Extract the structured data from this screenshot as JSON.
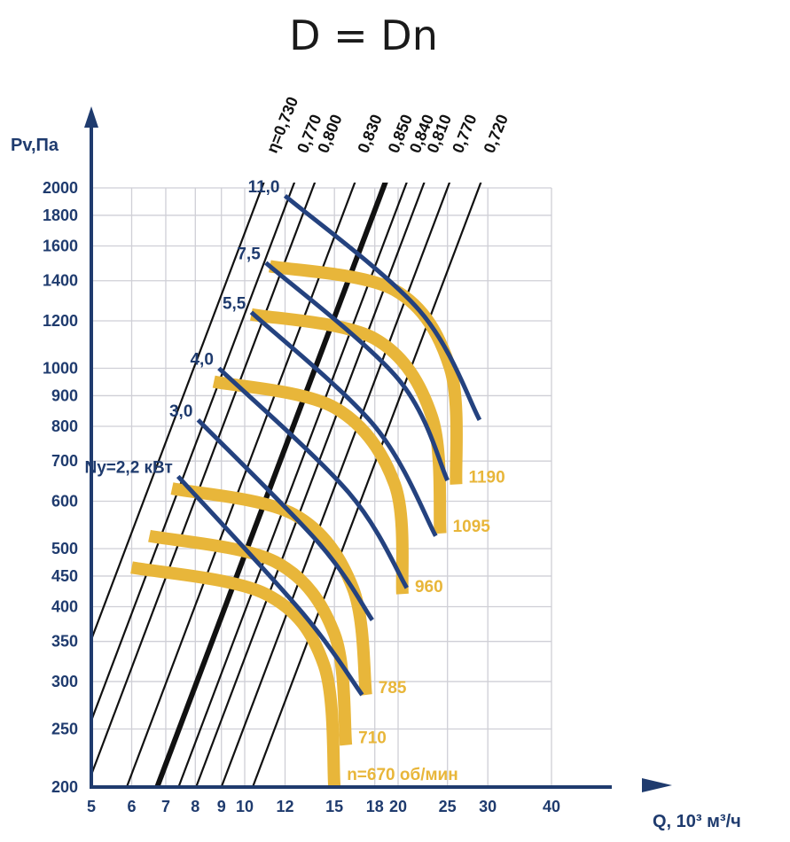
{
  "chart_data": {
    "type": "line",
    "title": "D = Dn",
    "xlabel": "Q, 10³ м³/ч",
    "ylabel": "Pv,Па",
    "x_scale": "log",
    "y_scale": "log",
    "xlim": [
      5,
      40
    ],
    "ylim": [
      200,
      2000
    ],
    "x_ticks": [
      5,
      6,
      7,
      8,
      9,
      10,
      12,
      15,
      18,
      20,
      25,
      30,
      40
    ],
    "y_ticks": [
      200,
      250,
      300,
      350,
      400,
      450,
      500,
      600,
      700,
      800,
      900,
      1000,
      1200,
      1400,
      1600,
      1800,
      2000
    ],
    "grid": true,
    "colors": {
      "axis": "#1f3b6e",
      "power": "#24427f",
      "speed": "#e8b63a",
      "efficiency": "#111111",
      "grid": "#cfcfd6"
    },
    "efficiency_lines": [
      {
        "label": "η=0,730",
        "x_at_ymax": 10.8
      },
      {
        "label": "0,770",
        "x_at_ymax": 12.4
      },
      {
        "label": "0,800",
        "x_at_ymax": 13.6
      },
      {
        "label": "0,830",
        "x_at_ymax": 16.3
      },
      {
        "label": "0,850",
        "x_at_ymax": 18.7,
        "bold": true
      },
      {
        "label": "0,840",
        "x_at_ymax": 20.6
      },
      {
        "label": "0,810",
        "x_at_ymax": 22.3
      },
      {
        "label": "0,770",
        "x_at_ymax": 25.0
      },
      {
        "label": "0,720",
        "x_at_ymax": 28.8
      }
    ],
    "power_curves": [
      {
        "label": "Ny=2,2 кВт",
        "points": [
          [
            7.4,
            660
          ],
          [
            13.0,
            390
          ],
          [
            17.0,
            285
          ]
        ]
      },
      {
        "label": "3,0",
        "points": [
          [
            8.1,
            820
          ],
          [
            14.0,
            510
          ],
          [
            17.8,
            380
          ]
        ]
      },
      {
        "label": "4,0",
        "points": [
          [
            8.9,
            1000
          ],
          [
            16.0,
            620
          ],
          [
            20.8,
            430
          ]
        ]
      },
      {
        "label": "5,5",
        "points": [
          [
            10.3,
            1240
          ],
          [
            18.0,
            800
          ],
          [
            23.7,
            525
          ]
        ]
      },
      {
        "label": "7,5",
        "points": [
          [
            11.0,
            1500
          ],
          [
            20.0,
            960
          ],
          [
            25.0,
            650
          ]
        ]
      },
      {
        "label": "11,0",
        "points": [
          [
            12.0,
            1940
          ],
          [
            22.0,
            1250
          ],
          [
            28.9,
            820
          ]
        ]
      }
    ],
    "speed_curves": [
      {
        "label": "n=670 об/мин",
        "points": [
          [
            6.0,
            465
          ],
          [
            11.0,
            420
          ],
          [
            14.3,
            320
          ],
          [
            15.0,
            200
          ]
        ]
      },
      {
        "label": "710",
        "points": [
          [
            6.5,
            525
          ],
          [
            11.5,
            475
          ],
          [
            15.0,
            360
          ],
          [
            15.8,
            235
          ]
        ]
      },
      {
        "label": "785",
        "points": [
          [
            7.2,
            630
          ],
          [
            12.5,
            570
          ],
          [
            16.3,
            430
          ],
          [
            17.3,
            285
          ]
        ]
      },
      {
        "label": "960",
        "points": [
          [
            8.7,
            950
          ],
          [
            15.0,
            860
          ],
          [
            19.7,
            640
          ],
          [
            20.4,
            420
          ]
        ]
      },
      {
        "label": "1095",
        "points": [
          [
            10.3,
            1230
          ],
          [
            18.0,
            1120
          ],
          [
            23.3,
            830
          ],
          [
            24.2,
            530
          ]
        ]
      },
      {
        "label": "1190",
        "points": [
          [
            11.2,
            1480
          ],
          [
            19.7,
            1350
          ],
          [
            25.3,
            1000
          ],
          [
            26.0,
            640
          ]
        ]
      }
    ]
  }
}
